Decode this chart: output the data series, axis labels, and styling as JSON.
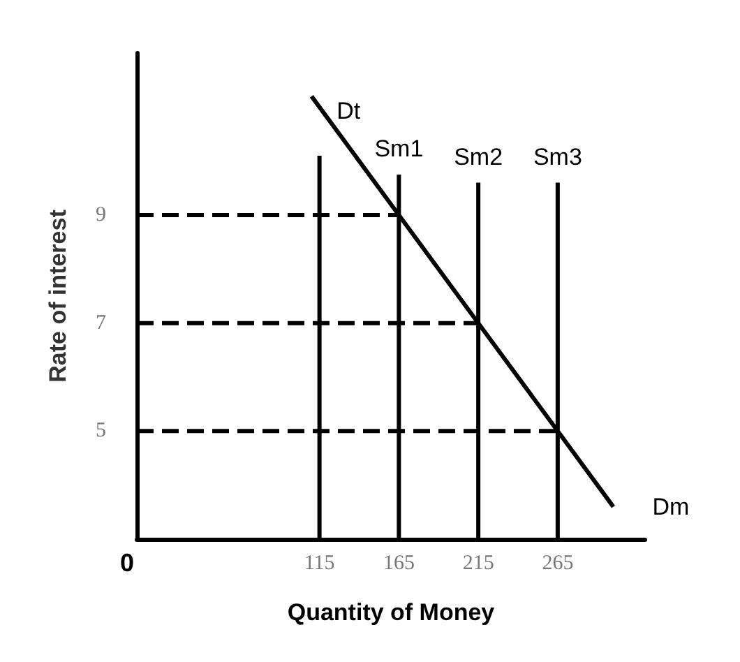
{
  "chart_data": {
    "type": "line",
    "xlabel": "Quantity of Money",
    "ylabel": "Rate of interest",
    "xlim": [
      0,
      320
    ],
    "ylim": [
      3,
      12
    ],
    "xticks": [
      115,
      165,
      215,
      265
    ],
    "yticks": [
      5,
      7,
      9
    ],
    "grid": false,
    "legend": false,
    "marker": "none",
    "series": [
      {
        "name": "Dm",
        "color": "#000000",
        "x": [
          110,
          165,
          215,
          265,
          300
        ],
        "values": [
          11.2,
          9,
          7,
          5,
          3.6
        ],
        "line_style": "solid"
      },
      {
        "color": "#000000",
        "x": [
          115,
          115
        ],
        "values": [
          3,
          10.1
        ],
        "line_style": "solid"
      },
      {
        "name": "Sm1",
        "color": "#000000",
        "x": [
          165,
          165
        ],
        "values": [
          3,
          9.75
        ],
        "line_style": "solid"
      },
      {
        "name": "Sm2",
        "color": "#000000",
        "x": [
          215,
          215
        ],
        "values": [
          3,
          9.6
        ],
        "line_style": "solid"
      },
      {
        "name": "Sm3",
        "color": "#000000",
        "x": [
          265,
          265
        ],
        "values": [
          3,
          9.6
        ],
        "line_style": "solid"
      },
      {
        "color": "#000000",
        "x": [
          0,
          165
        ],
        "values": [
          9,
          9
        ],
        "line_style": "dashed"
      },
      {
        "color": "#000000",
        "x": [
          0,
          215
        ],
        "values": [
          7,
          7
        ],
        "line_style": "dashed"
      },
      {
        "color": "#000000",
        "x": [
          0,
          265
        ],
        "values": [
          5,
          5
        ],
        "line_style": "dashed"
      }
    ],
    "annotations": [
      "0",
      {
        "text": "Dt",
        "x": 110,
        "y": 11.2
      }
    ]
  }
}
